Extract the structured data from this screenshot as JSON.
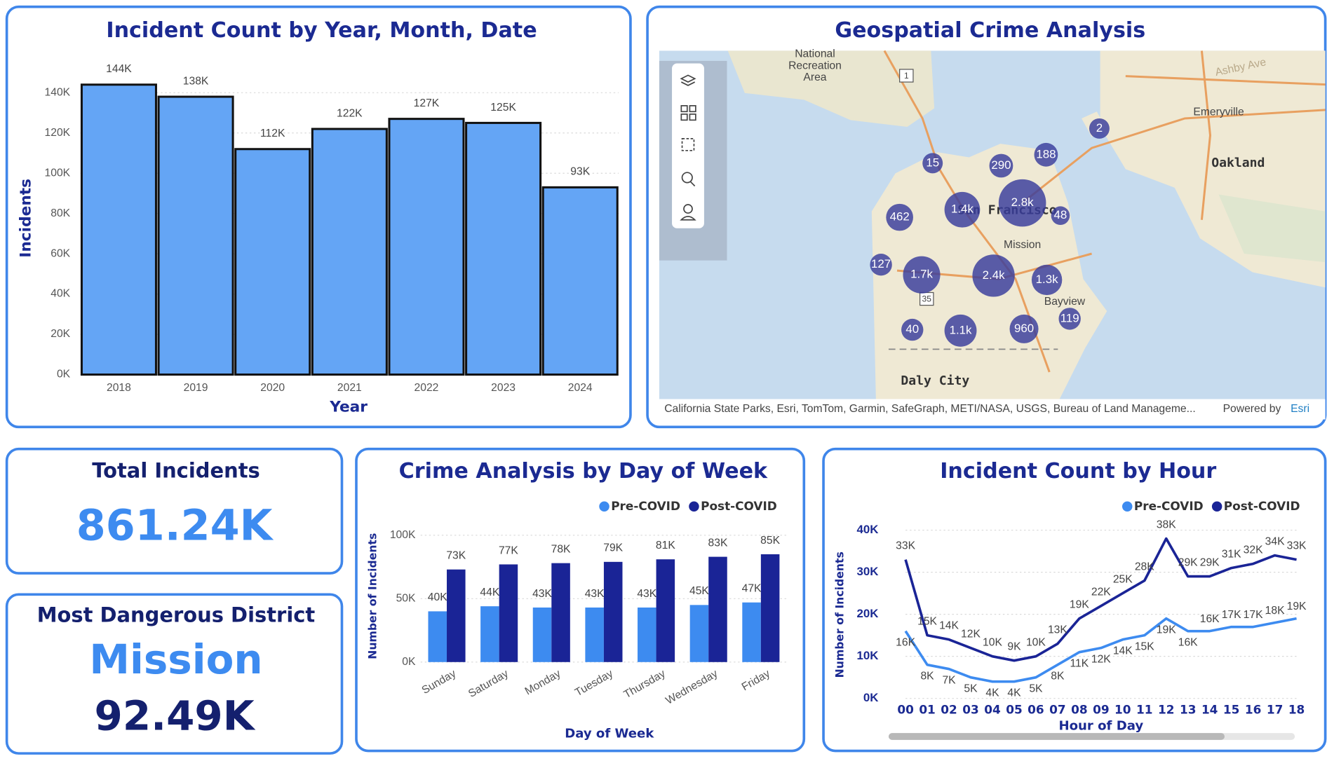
{
  "chart_data": [
    {
      "type": "bar",
      "title": "Incident Count by Year, Month, Date",
      "x_label": "Year",
      "y_label": "Incidents",
      "categories": [
        "2018",
        "2019",
        "2020",
        "2021",
        "2022",
        "2023",
        "2024"
      ],
      "values": [
        144000,
        138000,
        112000,
        122000,
        127000,
        125000,
        93000
      ],
      "value_labels": [
        "144K",
        "138K",
        "112K",
        "122K",
        "127K",
        "125K",
        "93K"
      ],
      "color": "#64a5f5",
      "ylim": [
        0,
        160000
      ],
      "yticks": [
        {
          "value": 0,
          "label": "0K"
        },
        {
          "value": 20000,
          "label": "20K"
        },
        {
          "value": 40000,
          "label": "40K"
        },
        {
          "value": 60000,
          "label": "60K"
        },
        {
          "value": 80000,
          "label": "80K"
        },
        {
          "value": 100000,
          "label": "100K"
        },
        {
          "value": 120000,
          "label": "120K"
        },
        {
          "value": 140000,
          "label": "140K"
        }
      ],
      "grid": true
    },
    {
      "type": "bar",
      "title": "Crime Analysis by Day of Week",
      "x_label": "Day of Week",
      "y_label": "Number of Incidents",
      "categories": [
        "Sunday",
        "Saturday",
        "Monday",
        "Tuesday",
        "Thursday",
        "Wednesday",
        "Friday"
      ],
      "series": [
        {
          "name": "Pre-COVID",
          "color": "#3d8bf0",
          "values": [
            40000,
            44000,
            43000,
            43000,
            43000,
            45000,
            47000
          ],
          "value_labels": [
            "40K",
            "44K",
            "43K",
            "43K",
            "43K",
            "45K",
            "47K"
          ]
        },
        {
          "name": "Post-COVID",
          "color": "#1a2496",
          "values": [
            73000,
            77000,
            78000,
            79000,
            81000,
            83000,
            85000
          ],
          "value_labels": [
            "73K",
            "77K",
            "78K",
            "79K",
            "81K",
            "83K",
            "85K"
          ]
        }
      ],
      "ylim": [
        0,
        100000
      ],
      "yticks": [
        {
          "value": 0,
          "label": "0K"
        },
        {
          "value": 50000,
          "label": "50K"
        },
        {
          "value": 100000,
          "label": "100K"
        }
      ],
      "grid": true
    },
    {
      "type": "line",
      "title": "Incident Count by Hour",
      "x_label": "Hour of Day",
      "y_label": "Number of Incidents",
      "categories": [
        "00",
        "01",
        "02",
        "03",
        "04",
        "05",
        "06",
        "07",
        "08",
        "09",
        "10",
        "11",
        "12",
        "13",
        "14",
        "15",
        "16",
        "17",
        "18"
      ],
      "series": [
        {
          "name": "Pre-COVID",
          "color": "#3d8bf0",
          "values": [
            16000,
            8000,
            7000,
            5000,
            4000,
            4000,
            5000,
            8000,
            11000,
            12000,
            14000,
            15000,
            19000,
            16000,
            16000,
            17000,
            17000,
            18000,
            19000
          ],
          "value_labels": [
            "16K",
            "8K",
            "7K",
            "5K",
            "4K",
            "4K",
            "5K",
            "8K",
            "11K",
            "12K",
            "14K",
            "15K",
            "19K",
            "16K",
            "16K",
            "17K",
            "17K",
            "18K",
            "19K"
          ]
        },
        {
          "name": "Post-COVID",
          "color": "#1a2496",
          "values": [
            33000,
            15000,
            14000,
            12000,
            10000,
            9000,
            10000,
            13000,
            19000,
            22000,
            25000,
            28000,
            38000,
            29000,
            29000,
            31000,
            32000,
            34000,
            33000
          ],
          "value_labels": [
            "33K",
            "15K",
            "14K",
            "12K",
            "10K",
            "9K",
            "10K",
            "13K",
            "19K",
            "22K",
            "25K",
            "28K",
            "38K",
            "29K",
            "29K",
            "31K",
            "32K",
            "34K",
            "33K"
          ]
        }
      ],
      "ylim": [
        0,
        40000
      ],
      "yticks": [
        {
          "value": 0,
          "label": "0K"
        },
        {
          "value": 10000,
          "label": "10K"
        },
        {
          "value": 20000,
          "label": "20K"
        },
        {
          "value": 30000,
          "label": "30K"
        },
        {
          "value": 40000,
          "label": "40K"
        }
      ],
      "grid": true
    }
  ],
  "map": {
    "title": "Geospatial Crime Analysis",
    "places": [
      "National",
      "Recreation",
      "Area",
      "Emeryville",
      "Oakland",
      "San Francisco",
      "Mission",
      "Bayview",
      "Daly City",
      "Ashby Ave"
    ],
    "shields": [
      "1",
      "35"
    ],
    "clusters": [
      "15",
      "290",
      "188",
      "2",
      "462",
      "1.4k",
      "2.8k",
      "48",
      "127",
      "1.7k",
      "2.4k",
      "1.3k",
      "40",
      "1.1k",
      "960",
      "119"
    ],
    "attribution": "California State Parks, Esri, TomTom, Garmin, SafeGraph, METI/NASA, USGS, Bureau of Land Manageme...",
    "powered_by": "Powered by",
    "provider": "Esri"
  },
  "kpis": [
    {
      "title": "Total Incidents",
      "value": "861.24K"
    },
    {
      "title": "Most Dangerous District",
      "value": "Mission",
      "count": "92.49K"
    }
  ]
}
